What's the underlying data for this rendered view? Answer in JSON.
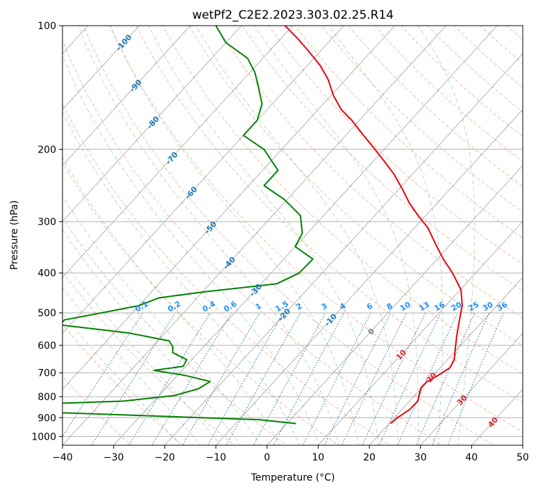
{
  "chart_data": {
    "type": "line",
    "title": "wetPf2_C2E2.2023.303.02.25.R14",
    "xlabel": "Temperature (°C)",
    "ylabel": "Pressure (hPa)",
    "xlim": [
      -40,
      50
    ],
    "ylim": [
      1050,
      100
    ],
    "y_scale": "log",
    "skew": "skew-T",
    "grid": true,
    "x_ticks": [
      -40,
      -30,
      -20,
      -10,
      0,
      10,
      20,
      30,
      40,
      50
    ],
    "y_ticks": [
      100,
      200,
      300,
      400,
      500,
      600,
      700,
      800,
      900,
      1000
    ],
    "series": [
      {
        "color": "#e8000b",
        "profile": [
          {
            "p": 930,
            "t": 20.3
          },
          {
            "p": 900,
            "t": 20.6
          },
          {
            "p": 860,
            "t": 21.5
          },
          {
            "p": 820,
            "t": 21.6
          },
          {
            "p": 790,
            "t": 20.7
          },
          {
            "p": 760,
            "t": 19.8
          },
          {
            "p": 735,
            "t": 19.9
          },
          {
            "p": 710,
            "t": 21.0
          },
          {
            "p": 680,
            "t": 21.9
          },
          {
            "p": 650,
            "t": 21.3
          },
          {
            "p": 610,
            "t": 19.5
          },
          {
            "p": 570,
            "t": 17.6
          },
          {
            "p": 530,
            "t": 15.7
          },
          {
            "p": 480,
            "t": 13.2
          },
          {
            "p": 440,
            "t": 10.2
          },
          {
            "p": 400,
            "t": 5.5
          },
          {
            "p": 370,
            "t": 1.2
          },
          {
            "p": 340,
            "t": -3.0
          },
          {
            "p": 310,
            "t": -7.5
          },
          {
            "p": 290,
            "t": -11.5
          },
          {
            "p": 270,
            "t": -15.5
          },
          {
            "p": 250,
            "t": -19.3
          },
          {
            "p": 230,
            "t": -23.6
          },
          {
            "p": 215,
            "t": -27.5
          },
          {
            "p": 200,
            "t": -31.8
          },
          {
            "p": 185,
            "t": -36.5
          },
          {
            "p": 170,
            "t": -41.5
          },
          {
            "p": 160,
            "t": -45.5
          },
          {
            "p": 148,
            "t": -49.5
          },
          {
            "p": 135,
            "t": -53.5
          },
          {
            "p": 125,
            "t": -57.5
          },
          {
            "p": 115,
            "t": -62.5
          },
          {
            "p": 107,
            "t": -67.0
          },
          {
            "p": 100,
            "t": -71.5
          }
        ]
      },
      {
        "color": "#008000",
        "profile": [
          {
            "p": 930,
            "t": 1.8
          },
          {
            "p": 910,
            "t": -6.0
          },
          {
            "p": 880,
            "t": -40.0
          },
          {
            "p": 860,
            "t": -66.0
          },
          {
            "p": 840,
            "t": -60.0
          },
          {
            "p": 820,
            "t": -36.0
          },
          {
            "p": 795,
            "t": -27.0
          },
          {
            "p": 765,
            "t": -23.5
          },
          {
            "p": 735,
            "t": -22.5
          },
          {
            "p": 710,
            "t": -28.5
          },
          {
            "p": 690,
            "t": -35.5
          },
          {
            "p": 675,
            "t": -30.5
          },
          {
            "p": 650,
            "t": -31.0
          },
          {
            "p": 625,
            "t": -35.0
          },
          {
            "p": 605,
            "t": -36.0
          },
          {
            "p": 585,
            "t": -37.8
          },
          {
            "p": 560,
            "t": -47.0
          },
          {
            "p": 535,
            "t": -62.0
          },
          {
            "p": 520,
            "t": -62.0
          },
          {
            "p": 500,
            "t": -56.0
          },
          {
            "p": 480,
            "t": -50.0
          },
          {
            "p": 460,
            "t": -47.5
          },
          {
            "p": 445,
            "t": -40.0
          },
          {
            "p": 425,
            "t": -27.0
          },
          {
            "p": 400,
            "t": -24.5
          },
          {
            "p": 370,
            "t": -24.3
          },
          {
            "p": 345,
            "t": -30.0
          },
          {
            "p": 320,
            "t": -31.0
          },
          {
            "p": 290,
            "t": -34.5
          },
          {
            "p": 265,
            "t": -40.5
          },
          {
            "p": 245,
            "t": -47.0
          },
          {
            "p": 225,
            "t": -47.0
          },
          {
            "p": 200,
            "t": -53.5
          },
          {
            "p": 185,
            "t": -60.0
          },
          {
            "p": 170,
            "t": -60.0
          },
          {
            "p": 155,
            "t": -62.0
          },
          {
            "p": 140,
            "t": -66.0
          },
          {
            "p": 130,
            "t": -69.0
          },
          {
            "p": 120,
            "t": -73.0
          },
          {
            "p": 110,
            "t": -80.0
          },
          {
            "p": 100,
            "t": -85.0
          }
        ]
      }
    ],
    "isotherm_labels": {
      "color": "#1f77b4",
      "labels": [
        "-100",
        "-90",
        "-80",
        "-70",
        "-60",
        "-50",
        "-40",
        "-30",
        "-20",
        "-10",
        "0",
        "10",
        "20",
        "30",
        "40"
      ],
      "values": [
        -100,
        -90,
        -80,
        -70,
        -60,
        -50,
        -40,
        -30,
        -20,
        -10,
        0,
        10,
        20,
        30,
        40
      ],
      "pressures": [
        110,
        140,
        172,
        210,
        255,
        310,
        378,
        440,
        505,
        520,
        555,
        632,
        718,
        815,
        922
      ]
    },
    "mixing_ratio_labels": {
      "color": "#1e90ff",
      "labels": [
        "0.1",
        "0.2",
        "0.4",
        "0.6",
        "1",
        "1.5",
        "2",
        "3",
        "4",
        "6",
        "8",
        "10",
        "13",
        "16",
        "20",
        "25",
        "30",
        "36"
      ],
      "values": [
        0.1,
        0.2,
        0.4,
        0.6,
        1,
        1.5,
        2,
        3,
        4,
        6,
        8,
        10,
        13,
        16,
        20,
        25,
        30,
        36
      ]
    },
    "colors": {
      "isotherm": "#555555",
      "dry_adiabat": "#f4a582",
      "moist_adiabat": "#7fbf7b",
      "mixing_ratio": "#1f77b4",
      "grid": "#b0b0b0",
      "warm_label": "#d62728",
      "neutral_label": "#808080"
    }
  }
}
